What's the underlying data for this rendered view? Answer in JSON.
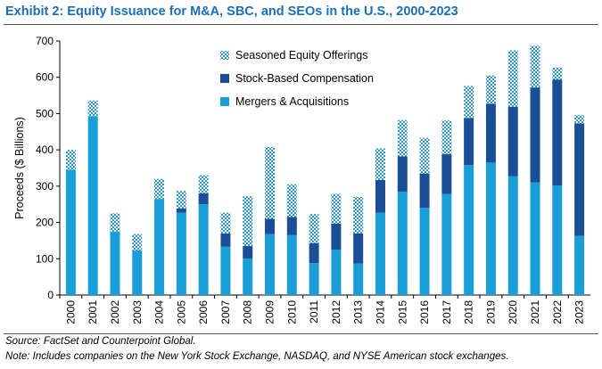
{
  "header": {
    "title": "Exhibit 2: Equity Issuance for M&A, SBC, and SEOs in the U.S., 2000-2023"
  },
  "footer": {
    "source": "Source: FactSet and Counterpoint Global.",
    "note": "Note: Includes companies on the New York Stock Exchange, NASDAQ, and NYSE American stock exchanges."
  },
  "chart_data": {
    "type": "bar",
    "stacked": true,
    "title": "Exhibit 2: Equity Issuance for M&A, SBC, and SEOs in the U.S., 2000-2023",
    "xlabel": "",
    "ylabel": "Proceeds ($ Billions)",
    "ylim": [
      0,
      700
    ],
    "yticks": [
      0,
      100,
      200,
      300,
      400,
      500,
      600,
      700
    ],
    "grid": false,
    "legend_position": "top-center",
    "categories": [
      "2000",
      "2001",
      "2002",
      "2003",
      "2004",
      "2005",
      "2006",
      "2007",
      "2008",
      "2009",
      "2010",
      "2011",
      "2012",
      "2013",
      "2014",
      "2015",
      "2016",
      "2017",
      "2018",
      "2019",
      "2020",
      "2021",
      "2022",
      "2023"
    ],
    "series": [
      {
        "name": "Mergers & Acquisitions",
        "color": "#1a9ed8",
        "pattern": "solid",
        "values": [
          345,
          493,
          175,
          123,
          265,
          227,
          250,
          133,
          100,
          168,
          165,
          88,
          125,
          87,
          227,
          285,
          240,
          278,
          358,
          365,
          327,
          310,
          302,
          163
        ]
      },
      {
        "name": "Stock-Based Compensation",
        "color": "#1a4f96",
        "pattern": "solid",
        "values": [
          0,
          0,
          0,
          0,
          0,
          12,
          30,
          37,
          35,
          42,
          50,
          55,
          72,
          83,
          90,
          97,
          95,
          110,
          130,
          162,
          192,
          262,
          292,
          310
        ]
      },
      {
        "name": "Seasoned Equity Offerings",
        "color": "#1a9ed8",
        "pattern": "hatched",
        "values": [
          55,
          43,
          50,
          45,
          55,
          48,
          50,
          57,
          137,
          198,
          90,
          80,
          82,
          100,
          87,
          100,
          98,
          93,
          88,
          78,
          155,
          115,
          33,
          23
        ]
      }
    ],
    "legend_order": [
      "Seasoned Equity Offerings",
      "Stock-Based Compensation",
      "Mergers & Acquisitions"
    ]
  }
}
